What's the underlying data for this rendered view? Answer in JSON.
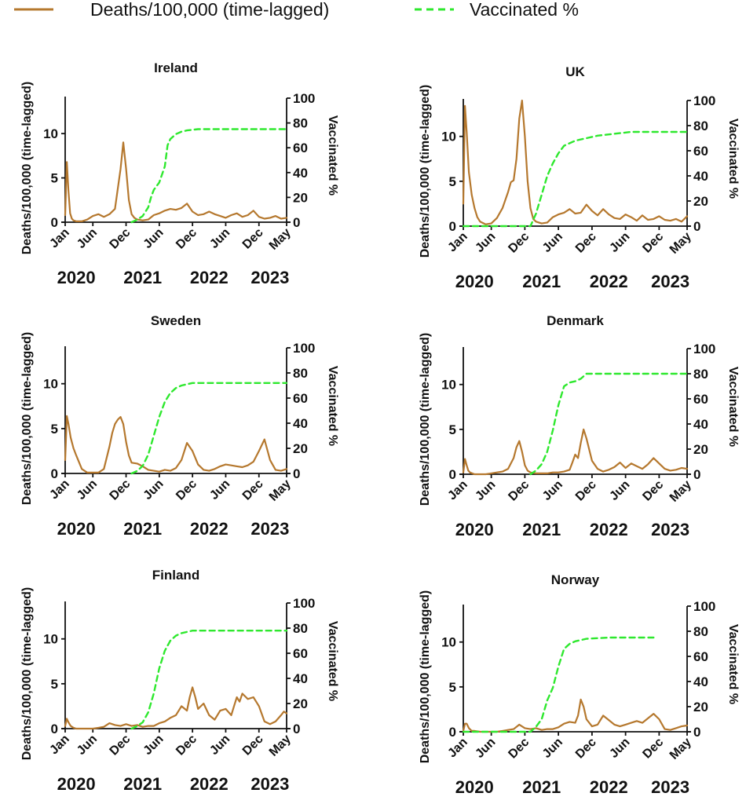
{
  "legend": [
    {
      "label": "Deaths/100,000 (time-lagged)",
      "color": "#B5782E",
      "style": "solid"
    },
    {
      "label": "Vaccinated %",
      "color": "#2EE82E",
      "style": "dashed"
    }
  ],
  "chart_data": [
    {
      "type": "line",
      "title": "Ireland",
      "ylabel": "Deaths/100,000 (time-lagged)",
      "y2label": "Vaccinated %",
      "ylim": [
        0,
        14
      ],
      "yticks": [
        0,
        5,
        10
      ],
      "y2lim": [
        0,
        100
      ],
      "y2ticks": [
        0,
        20,
        40,
        60,
        80,
        100
      ],
      "xticks": [
        "Jan",
        "Jun",
        "Dec",
        "Jun",
        "Dec",
        "Jun",
        "Dec",
        "May"
      ],
      "years": [
        "2020",
        "2021",
        "2022",
        "2023"
      ],
      "series": [
        {
          "name": "Deaths/100,000 (time-lagged)",
          "axis": "left",
          "color": "#B5782E",
          "x": [
            0,
            0.3,
            0.6,
            0.9,
            1.2,
            1.5,
            2,
            3,
            4,
            5,
            6,
            7,
            8,
            9,
            10,
            10.5,
            11,
            11.5,
            12,
            12.5,
            13,
            14,
            15,
            16,
            17,
            18,
            19,
            20,
            21,
            22,
            23,
            24,
            25,
            26,
            27,
            28,
            29,
            30,
            31,
            32,
            33,
            34,
            35,
            36,
            37,
            38,
            39,
            40
          ],
          "values": [
            0.8,
            6.8,
            3.5,
            1.0,
            0.4,
            0.2,
            0.1,
            0.1,
            0.3,
            0.7,
            0.9,
            0.6,
            0.9,
            1.5,
            6.0,
            9.0,
            6.0,
            2.5,
            0.9,
            0.5,
            0.3,
            0.2,
            0.3,
            0.8,
            1.0,
            1.3,
            1.5,
            1.4,
            1.6,
            2.1,
            1.2,
            0.8,
            0.9,
            1.2,
            0.9,
            0.7,
            0.5,
            0.8,
            1.0,
            0.6,
            0.8,
            1.3,
            0.6,
            0.4,
            0.5,
            0.7,
            0.4,
            0.5
          ]
        },
        {
          "name": "Vaccinated %",
          "axis": "right",
          "color": "#2EE82E",
          "x": [
            12,
            13,
            14,
            15,
            15.5,
            16,
            17,
            18,
            18.5,
            19,
            20,
            21,
            22,
            23,
            24,
            26,
            30,
            34,
            38,
            40
          ],
          "values": [
            0,
            2,
            5,
            12,
            20,
            26,
            32,
            45,
            62,
            67,
            71,
            73,
            74,
            74.5,
            75,
            75,
            75,
            75,
            75,
            75
          ]
        }
      ]
    },
    {
      "type": "line",
      "title": "UK",
      "ylabel": "Deaths/100,000 (time-lagged)",
      "y2label": "Vaccinated %",
      "ylim": [
        0,
        14
      ],
      "yticks": [
        0,
        5,
        10
      ],
      "y2lim": [
        0,
        100
      ],
      "y2ticks": [
        0,
        20,
        40,
        60,
        80,
        100
      ],
      "xticks": [
        "Jan",
        "Jun",
        "Dec",
        "Jun",
        "Dec",
        "Jun",
        "Dec",
        "May"
      ],
      "years": [
        "2020",
        "2021",
        "2022",
        "2023"
      ],
      "series": [
        {
          "name": "Deaths/100,000 (time-lagged)",
          "axis": "left",
          "color": "#B5782E",
          "x": [
            0,
            0.3,
            0.6,
            1.0,
            1.5,
            2,
            2.5,
            3,
            4,
            5,
            6,
            7,
            8,
            8.5,
            9,
            9.5,
            10,
            10.5,
            11,
            11.5,
            12,
            12.5,
            13,
            14,
            15,
            16,
            17,
            18,
            19,
            20,
            21,
            22,
            23,
            24,
            25,
            26,
            27,
            28,
            29,
            30,
            31,
            32,
            33,
            34,
            35,
            36,
            37,
            38,
            39,
            40
          ],
          "values": [
            2.5,
            13.4,
            10.5,
            6.0,
            3.5,
            2.0,
            1.0,
            0.5,
            0.2,
            0.3,
            0.9,
            2.0,
            3.8,
            4.9,
            5.1,
            7.5,
            12.0,
            14.0,
            10.0,
            5.0,
            2.0,
            0.8,
            0.5,
            0.3,
            0.4,
            1.0,
            1.3,
            1.5,
            1.9,
            1.4,
            1.5,
            2.4,
            1.7,
            1.2,
            1.9,
            1.3,
            0.9,
            0.8,
            1.3,
            1.0,
            0.6,
            1.2,
            0.7,
            0.8,
            1.1,
            0.7,
            0.6,
            0.8,
            0.5,
            1.1
          ]
        },
        {
          "name": "Vaccinated %",
          "axis": "right",
          "color": "#2EE82E",
          "x": [
            0,
            10,
            11,
            12,
            13,
            14,
            15,
            16,
            17,
            18,
            19,
            20,
            22,
            24,
            26,
            28,
            30,
            32,
            34,
            36,
            38,
            40
          ],
          "values": [
            0,
            0,
            0,
            0,
            10,
            25,
            40,
            50,
            58,
            64,
            66,
            68,
            70,
            72,
            73,
            74,
            75,
            75,
            75,
            75,
            75,
            75
          ]
        }
      ]
    },
    {
      "type": "line",
      "title": "Sweden",
      "ylabel": "Deaths/100,000 (time-lagged)",
      "y2label": "Vaccinated %",
      "ylim": [
        0,
        14
      ],
      "yticks": [
        0,
        5,
        10
      ],
      "y2lim": [
        0,
        100
      ],
      "y2ticks": [
        0,
        20,
        40,
        60,
        80,
        100
      ],
      "xticks": [
        "Jan",
        "Jun",
        "Dec",
        "Jun",
        "Dec",
        "Jun",
        "Dec",
        "May"
      ],
      "years": [
        "2020",
        "2021",
        "2022",
        "2023"
      ],
      "series": [
        {
          "name": "Deaths/100,000 (time-lagged)",
          "axis": "left",
          "color": "#B5782E",
          "x": [
            0,
            0.3,
            0.6,
            1.0,
            1.5,
            2,
            3,
            4,
            5,
            6,
            7,
            8,
            8.5,
            9,
            9.5,
            10,
            10.5,
            11,
            11.5,
            12,
            13,
            14,
            15,
            16,
            17,
            18,
            19,
            20,
            21,
            22,
            23,
            24,
            25,
            26,
            27,
            28,
            29,
            30,
            31,
            32,
            33,
            34,
            35,
            36,
            37,
            38,
            39,
            40
          ],
          "values": [
            1.5,
            6.4,
            5.5,
            4.0,
            2.8,
            2.0,
            0.5,
            0.1,
            0.1,
            0.1,
            0.5,
            3.0,
            4.5,
            5.5,
            6.0,
            6.3,
            5.5,
            3.5,
            2.0,
            1.2,
            1.1,
            0.8,
            0.4,
            0.3,
            0.2,
            0.4,
            0.3,
            0.6,
            1.5,
            3.4,
            2.5,
            1.0,
            0.4,
            0.3,
            0.5,
            0.8,
            1.0,
            0.9,
            0.8,
            0.7,
            0.9,
            1.3,
            2.5,
            3.8,
            1.5,
            0.4,
            0.3,
            0.5
          ]
        },
        {
          "name": "Vaccinated %",
          "axis": "right",
          "color": "#2EE82E",
          "x": [
            12,
            13,
            14,
            15,
            16,
            17,
            18,
            19,
            20,
            21,
            22,
            23,
            24,
            26,
            30,
            34,
            38,
            40
          ],
          "values": [
            0,
            2,
            6,
            15,
            30,
            45,
            57,
            64,
            68,
            70,
            71,
            72,
            72,
            72,
            72,
            72,
            72,
            72
          ]
        }
      ]
    },
    {
      "type": "line",
      "title": "Denmark",
      "ylabel": "Deaths/100,000 (time-lagged)",
      "y2label": "Vaccinated %",
      "ylim": [
        0,
        14
      ],
      "yticks": [
        0,
        5,
        10
      ],
      "y2lim": [
        0,
        100
      ],
      "y2ticks": [
        0,
        20,
        40,
        60,
        80,
        100
      ],
      "xticks": [
        "Jan",
        "Jun",
        "Dec",
        "Jun",
        "Dec",
        "Jun",
        "Dec",
        "May"
      ],
      "years": [
        "2020",
        "2021",
        "2022",
        "2023"
      ],
      "series": [
        {
          "name": "Deaths/100,000 (time-lagged)",
          "axis": "left",
          "color": "#B5782E",
          "x": [
            0,
            0.3,
            0.6,
            0.9,
            1.2,
            1.6,
            2,
            3,
            4,
            5,
            6,
            7,
            8,
            9,
            9.5,
            10,
            10.5,
            11,
            11.5,
            12,
            13,
            14,
            15,
            16,
            17,
            18,
            19,
            19.5,
            20,
            20.5,
            21,
            21.5,
            22,
            23,
            24,
            25,
            26,
            27,
            28,
            29,
            30,
            31,
            32,
            33,
            34,
            35,
            36,
            37,
            38,
            39,
            40
          ],
          "values": [
            0.2,
            1.7,
            1.0,
            0.4,
            0.2,
            0.1,
            0.0,
            0.0,
            0.0,
            0.1,
            0.2,
            0.3,
            0.6,
            1.8,
            3.0,
            3.7,
            2.5,
            1.0,
            0.4,
            0.2,
            0.1,
            0.1,
            0.1,
            0.2,
            0.2,
            0.3,
            0.5,
            1.3,
            2.2,
            1.8,
            3.5,
            5.0,
            4.0,
            1.5,
            0.6,
            0.3,
            0.5,
            0.8,
            1.3,
            0.7,
            1.2,
            0.9,
            0.6,
            1.1,
            1.8,
            1.2,
            0.6,
            0.4,
            0.5,
            0.7,
            0.6
          ]
        },
        {
          "name": "Vaccinated %",
          "axis": "right",
          "color": "#2EE82E",
          "x": [
            12,
            13,
            14,
            15,
            16,
            17,
            18,
            19,
            20,
            21,
            22,
            23,
            24,
            26,
            30,
            34,
            38,
            40
          ],
          "values": [
            0,
            3,
            8,
            18,
            35,
            55,
            70,
            73,
            74,
            76,
            80,
            80,
            80,
            80,
            80,
            80,
            80,
            80
          ]
        }
      ]
    },
    {
      "type": "line",
      "title": "Finland",
      "ylabel": "Deaths/100,000 (time-lagged)",
      "y2label": "Vaccinated %",
      "ylim": [
        0,
        14
      ],
      "yticks": [
        0,
        5,
        10
      ],
      "y2lim": [
        0,
        100
      ],
      "y2ticks": [
        0,
        20,
        40,
        60,
        80,
        100
      ],
      "xticks": [
        "Jan",
        "Jun",
        "Dec",
        "Jun",
        "Dec",
        "Jun",
        "Dec",
        "May"
      ],
      "years": [
        "2020",
        "2021",
        "2022",
        "2023"
      ],
      "series": [
        {
          "name": "Deaths/100,000 (time-lagged)",
          "axis": "left",
          "color": "#B5782E",
          "x": [
            0,
            0.3,
            0.6,
            1.0,
            1.5,
            2,
            3,
            4,
            5,
            6,
            7,
            8,
            9,
            10,
            11,
            12,
            13,
            14,
            15,
            16,
            17,
            18,
            19,
            20,
            21,
            22,
            22.5,
            23,
            23.5,
            24,
            25,
            26,
            27,
            28,
            29,
            30,
            30.5,
            31,
            31.5,
            32,
            33,
            34,
            35,
            36,
            37,
            38,
            39,
            39.5,
            40
          ],
          "values": [
            0.3,
            1.1,
            0.7,
            0.3,
            0.1,
            0.0,
            0.0,
            0.0,
            0.0,
            0.1,
            0.2,
            0.6,
            0.4,
            0.3,
            0.5,
            0.3,
            0.4,
            0.2,
            0.3,
            0.3,
            0.6,
            0.8,
            1.2,
            1.5,
            2.5,
            2.0,
            3.5,
            4.6,
            3.5,
            2.2,
            2.8,
            1.5,
            1.0,
            2.0,
            2.2,
            1.5,
            2.5,
            3.5,
            3.0,
            3.9,
            3.3,
            3.5,
            2.5,
            0.8,
            0.5,
            0.8,
            1.5,
            1.9,
            1.7
          ]
        },
        {
          "name": "Vaccinated %",
          "axis": "right",
          "color": "#2EE82E",
          "x": [
            12,
            13,
            14,
            15,
            16,
            17,
            18,
            19,
            20,
            21,
            22,
            23,
            24,
            26,
            30,
            34,
            38,
            40
          ],
          "values": [
            0,
            2,
            5,
            13,
            28,
            48,
            62,
            70,
            74,
            76,
            77,
            78,
            78,
            78,
            78,
            78,
            78,
            78
          ]
        }
      ]
    },
    {
      "type": "line",
      "title": "Norway",
      "ylabel": "Deaths/100,000 (time-lagged)",
      "y2label": "Vaccinated %",
      "ylim": [
        0,
        14
      ],
      "yticks": [
        0,
        5,
        10
      ],
      "y2lim": [
        0,
        100
      ],
      "y2ticks": [
        0,
        20,
        40,
        60,
        80,
        100
      ],
      "xticks": [
        "Jan",
        "Jun",
        "Dec",
        "Jun",
        "Dec",
        "Jun",
        "Dec",
        "May"
      ],
      "years": [
        "2020",
        "2021",
        "2022",
        "2023"
      ],
      "series": [
        {
          "name": "Deaths/100,000 (time-lagged)",
          "axis": "left",
          "color": "#B5782E",
          "x": [
            0,
            0.3,
            0.6,
            1.0,
            1.5,
            2,
            3,
            4,
            5,
            6,
            7,
            8,
            9,
            10,
            11,
            12,
            13,
            14,
            15,
            16,
            17,
            18,
            19,
            20,
            20.5,
            21,
            21.5,
            22,
            23,
            24,
            25,
            26,
            27,
            28,
            29,
            30,
            31,
            32,
            33,
            34,
            35,
            36,
            37,
            38,
            39,
            40
          ],
          "values": [
            0.1,
            0.9,
            0.9,
            0.4,
            0.1,
            0.1,
            0.0,
            0.0,
            0.0,
            0.0,
            0.1,
            0.2,
            0.3,
            0.8,
            0.4,
            0.3,
            0.4,
            0.2,
            0.3,
            0.3,
            0.5,
            0.9,
            1.1,
            1.0,
            1.8,
            3.6,
            2.8,
            1.4,
            0.6,
            0.8,
            1.8,
            1.3,
            0.8,
            0.6,
            0.8,
            1.0,
            1.2,
            1.0,
            1.5,
            2.0,
            1.4,
            0.3,
            0.2,
            0.4,
            0.6,
            0.7
          ]
        },
        {
          "name": "Vaccinated %",
          "axis": "right",
          "color": "#2EE82E",
          "x": [
            0,
            10,
            11,
            12,
            13,
            14,
            15,
            16,
            17,
            18,
            19,
            20,
            21,
            22,
            24,
            26,
            28,
            30,
            32,
            34
          ],
          "values": [
            0,
            0,
            0,
            0,
            4,
            10,
            25,
            35,
            52,
            66,
            70,
            72,
            73,
            74,
            74.5,
            75,
            75,
            75,
            75,
            75
          ]
        }
      ]
    }
  ]
}
